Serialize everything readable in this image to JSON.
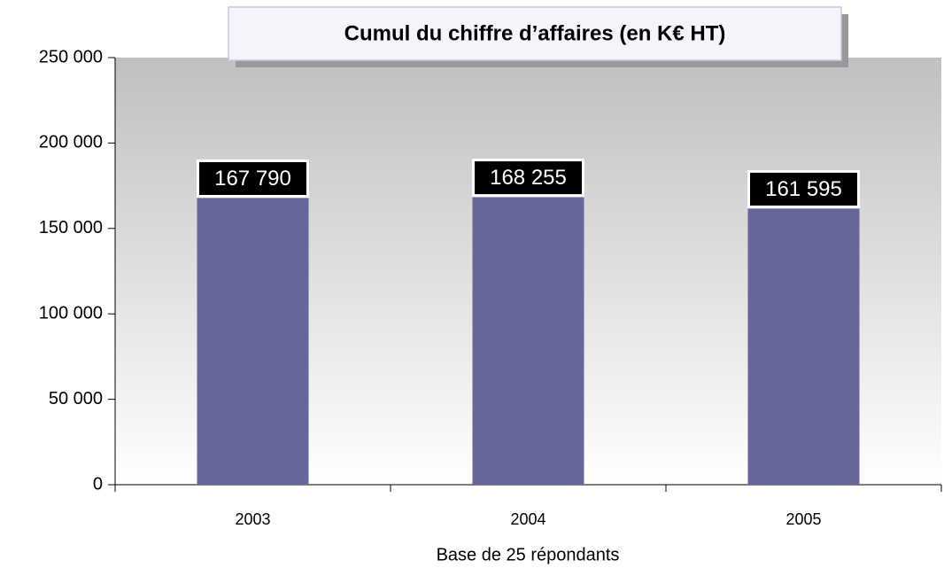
{
  "chart_data": {
    "type": "bar",
    "title": "Cumul du chiffre d’affaires (en K€ HT)",
    "x_label": "Base de 25 répondants",
    "categories": [
      "2003",
      "2004",
      "2005"
    ],
    "values": [
      167790,
      168255,
      161595
    ],
    "value_labels": [
      "167 790",
      "168 255",
      "161 595"
    ],
    "color": "#666699",
    "ylim": [
      0,
      250000
    ],
    "yticks": [
      0,
      {
        "value": 50000,
        "label": "50 000"
      },
      {
        "value": 100000,
        "label": "100 000"
      },
      {
        "value": 150000,
        "label": "150 000"
      },
      {
        "value": 200000,
        "label": "200 000"
      },
      {
        "value": 250000,
        "label": "250 000"
      }
    ],
    "grid": false
  }
}
